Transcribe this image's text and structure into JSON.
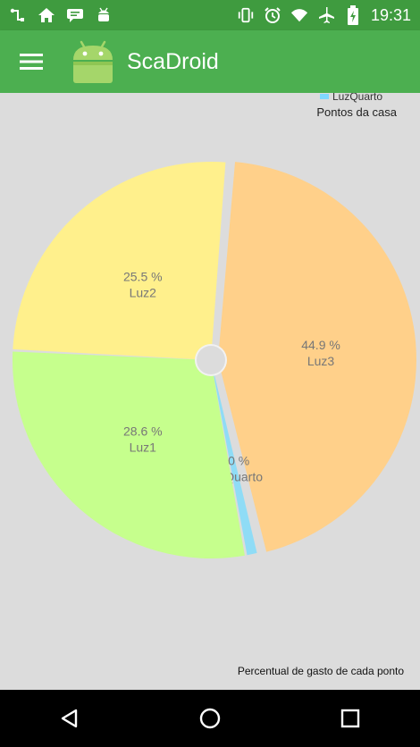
{
  "status_bar": {
    "time": "19:31",
    "icons_left": [
      "usb-icon",
      "home-icon",
      "chat-icon",
      "android-debug-icon"
    ],
    "icons_right": [
      "vibrate-icon",
      "alarm-icon",
      "wifi-icon",
      "airplane-icon",
      "battery-charging-icon"
    ]
  },
  "app_bar": {
    "title": "ScaDroid",
    "menu_icon": "hamburger-menu-icon",
    "logo_icon": "android-logo-icon",
    "color": "#4caf50"
  },
  "legend": {
    "partial_label": "LuzQuarto"
  },
  "chart_title": "Pontos da casa",
  "chart_description": "Percentual de gasto de cada ponto",
  "chart_data": {
    "type": "pie",
    "title": "Pontos da casa",
    "description": "Percentual de gasto de cada ponto",
    "hole": true,
    "slices": [
      {
        "label": "Luz3",
        "value": 44.9,
        "value_text": "44.9 %",
        "color": "#ffd08a"
      },
      {
        "label": "LuzQuarto",
        "value": 1.0,
        "value_text": "1.0 %",
        "color": "#8fdcf6"
      },
      {
        "label": "Luz1",
        "value": 28.6,
        "value_text": "28.6 %",
        "color": "#c6ff8d"
      },
      {
        "label": "Luz2",
        "value": 25.5,
        "value_text": "25.5 %",
        "color": "#fff08c"
      }
    ],
    "legend_position": "top-right"
  },
  "nav_bar": {
    "buttons": [
      "back-icon",
      "home-circle-icon",
      "recents-square-icon"
    ]
  }
}
